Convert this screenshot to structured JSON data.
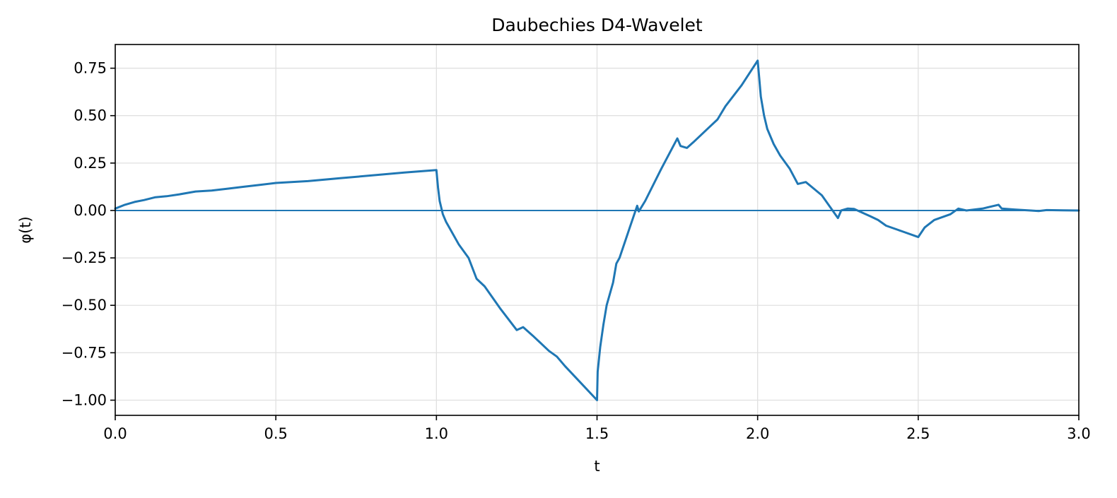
{
  "chart_data": {
    "type": "line",
    "title": "Daubechies D4-Wavelet",
    "xlabel": "t",
    "ylabel": "φ(t)",
    "xlim": [
      0.0,
      3.0
    ],
    "ylim": [
      -1.08,
      0.875
    ],
    "xticks": [
      0.0,
      0.5,
      1.0,
      1.5,
      2.0,
      2.5,
      3.0
    ],
    "xtick_labels": [
      "0.0",
      "0.5",
      "1.0",
      "1.5",
      "2.0",
      "2.5",
      "3.0"
    ],
    "yticks": [
      0.75,
      0.5,
      0.25,
      0.0,
      -0.25,
      -0.5,
      -0.75,
      -1.0
    ],
    "ytick_labels": [
      "0.75",
      "0.50",
      "0.25",
      "0.00",
      "−0.25",
      "−0.50",
      "−0.75",
      "−1.00"
    ],
    "grid": true,
    "colors": {
      "line": "#1f77b4",
      "grid": "#e0e0e0",
      "axes": "#000000",
      "zero_line": "#1f77b4"
    },
    "reference_lines": [
      {
        "orientation": "horizontal",
        "y": 0.0
      }
    ],
    "series": [
      {
        "x": [
          0.0,
          0.03,
          0.06,
          0.09,
          0.125,
          0.16,
          0.2,
          0.25,
          0.3,
          0.35,
          0.4,
          0.45,
          0.5,
          0.6,
          0.7,
          0.8,
          0.9,
          1.0,
          1.005,
          1.01,
          1.02,
          1.03,
          1.05,
          1.07,
          1.1,
          1.125,
          1.15,
          1.2,
          1.25,
          1.27,
          1.3,
          1.35,
          1.375,
          1.4,
          1.45,
          1.5,
          1.502,
          1.51,
          1.52,
          1.53,
          1.55,
          1.56,
          1.57,
          1.6,
          1.625,
          1.63,
          1.65,
          1.7,
          1.75,
          1.76,
          1.78,
          1.8,
          1.85,
          1.875,
          1.9,
          1.95,
          2.0,
          2.005,
          2.01,
          2.02,
          2.03,
          2.05,
          2.07,
          2.1,
          2.125,
          2.15,
          2.2,
          2.25,
          2.26,
          2.28,
          2.3,
          2.35,
          2.375,
          2.4,
          2.45,
          2.5,
          2.52,
          2.55,
          2.6,
          2.625,
          2.65,
          2.7,
          2.75,
          2.76,
          2.8,
          2.85,
          2.875,
          2.9,
          2.95,
          3.0
        ],
        "values": [
          0.01,
          0.03,
          0.045,
          0.055,
          0.07,
          0.075,
          0.085,
          0.1,
          0.105,
          0.115,
          0.125,
          0.135,
          0.145,
          0.155,
          0.17,
          0.185,
          0.2,
          0.213,
          0.12,
          0.05,
          -0.02,
          -0.06,
          -0.12,
          -0.18,
          -0.25,
          -0.36,
          -0.4,
          -0.52,
          -0.63,
          -0.615,
          -0.66,
          -0.74,
          -0.77,
          -0.82,
          -0.91,
          -1.0,
          -0.85,
          -0.72,
          -0.6,
          -0.5,
          -0.38,
          -0.28,
          -0.25,
          -0.1,
          0.025,
          -0.005,
          0.05,
          0.22,
          0.38,
          0.34,
          0.33,
          0.36,
          0.44,
          0.48,
          0.55,
          0.66,
          0.79,
          0.7,
          0.6,
          0.5,
          0.43,
          0.35,
          0.29,
          0.22,
          0.14,
          0.15,
          0.08,
          -0.04,
          0.0,
          0.01,
          0.008,
          -0.03,
          -0.05,
          -0.08,
          -0.11,
          -0.14,
          -0.09,
          -0.05,
          -0.02,
          0.01,
          0.0,
          0.01,
          0.03,
          0.01,
          0.005,
          0.0,
          -0.003,
          0.002,
          0.001,
          0.0
        ]
      }
    ]
  }
}
